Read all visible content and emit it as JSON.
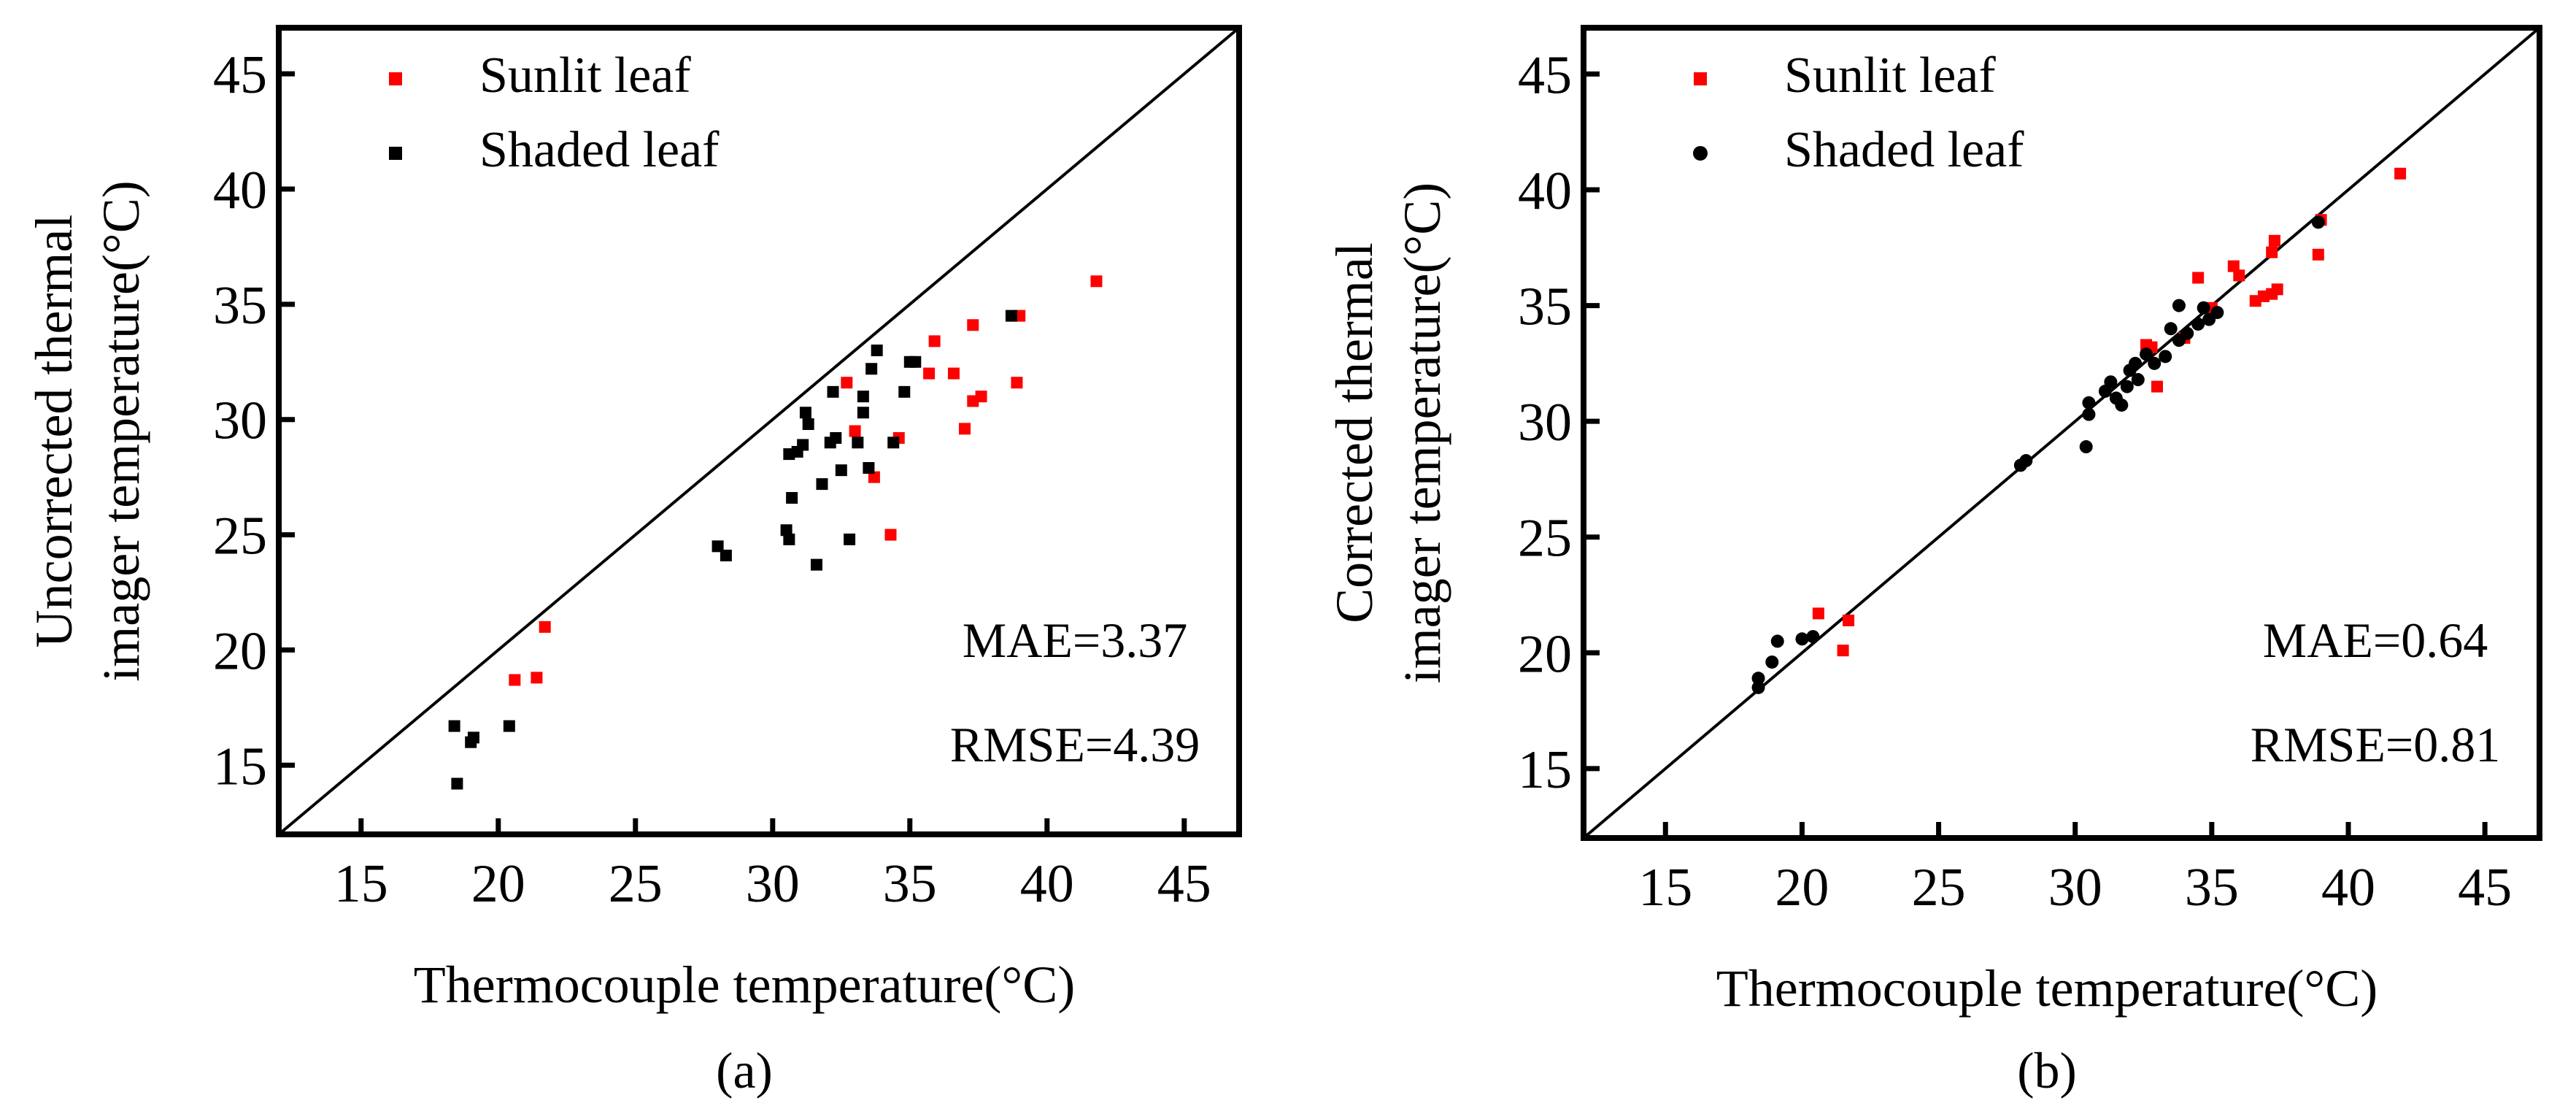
{
  "chart_data": [
    {
      "type": "scatter",
      "panel_label": "(a)",
      "xlabel": "Thermocouple temperature(°C)",
      "ylabel_lines": [
        "Uncorrected thermal",
        "imager temperature(°C)"
      ],
      "xlim": [
        12,
        47
      ],
      "ylim": [
        12,
        47
      ],
      "xticks": [
        15,
        20,
        25,
        30,
        35,
        40,
        45
      ],
      "yticks": [
        15,
        20,
        25,
        30,
        35,
        40,
        45
      ],
      "reference_line": "1:1",
      "legend_position": "top-left",
      "stats": [
        "MAE=3.37",
        "RMSE=4.39"
      ],
      "series": [
        {
          "name": "Sunlit leaf",
          "marker": "square",
          "color": "#ff0000",
          "points": [
            [
              20.6,
              18.7
            ],
            [
              21.4,
              18.8
            ],
            [
              21.7,
              21.0
            ],
            [
              32.7,
              31.6
            ],
            [
              33.0,
              29.5
            ],
            [
              33.7,
              27.5
            ],
            [
              34.3,
              25.0
            ],
            [
              34.6,
              29.2
            ],
            [
              35.7,
              32.0
            ],
            [
              35.9,
              33.4
            ],
            [
              36.6,
              32.0
            ],
            [
              37.0,
              29.6
            ],
            [
              37.3,
              34.1
            ],
            [
              37.3,
              30.8
            ],
            [
              37.6,
              31.0
            ],
            [
              38.9,
              31.6
            ],
            [
              39.0,
              34.5
            ],
            [
              41.8,
              36.0
            ]
          ]
        },
        {
          "name": "Shaded leaf",
          "marker": "square",
          "color": "#000000",
          "points": [
            [
              18.4,
              16.7
            ],
            [
              18.5,
              14.2
            ],
            [
              19.0,
              16.0
            ],
            [
              19.1,
              16.2
            ],
            [
              20.4,
              16.7
            ],
            [
              28.0,
              24.5
            ],
            [
              28.3,
              24.1
            ],
            [
              30.5,
              25.2
            ],
            [
              30.6,
              24.8
            ],
            [
              30.7,
              26.6
            ],
            [
              30.6,
              28.5
            ],
            [
              30.9,
              28.6
            ],
            [
              31.1,
              28.9
            ],
            [
              31.2,
              30.3
            ],
            [
              31.3,
              29.8
            ],
            [
              31.6,
              23.7
            ],
            [
              31.8,
              27.2
            ],
            [
              32.1,
              29.0
            ],
            [
              32.2,
              31.2
            ],
            [
              32.3,
              29.2
            ],
            [
              32.5,
              27.8
            ],
            [
              32.8,
              24.8
            ],
            [
              33.1,
              29.0
            ],
            [
              33.3,
              31.0
            ],
            [
              33.3,
              30.3
            ],
            [
              33.5,
              27.9
            ],
            [
              33.6,
              32.2
            ],
            [
              33.8,
              33.0
            ],
            [
              34.4,
              29.0
            ],
            [
              34.8,
              31.2
            ],
            [
              35.0,
              32.5
            ],
            [
              35.2,
              32.5
            ],
            [
              38.7,
              34.5
            ]
          ]
        }
      ]
    },
    {
      "type": "scatter",
      "panel_label": "(b)",
      "xlabel": "Thermocouple temperature(°C)",
      "ylabel_lines": [
        "Corrected thermal",
        "imager temperature(°C)"
      ],
      "xlim": [
        12,
        47
      ],
      "ylim": [
        12,
        47
      ],
      "xticks": [
        15,
        20,
        25,
        30,
        35,
        40,
        45
      ],
      "yticks": [
        15,
        20,
        25,
        30,
        35,
        40,
        45
      ],
      "reference_line": "1:1",
      "legend_position": "top-left",
      "stats": [
        "MAE=0.64",
        "RMSE=0.81"
      ],
      "series": [
        {
          "name": "Sunlit leaf",
          "marker": "square",
          "color": "#ff0000",
          "points": [
            [
              20.6,
              21.7
            ],
            [
              21.5,
              20.1
            ],
            [
              21.7,
              21.4
            ],
            [
              32.6,
              33.3
            ],
            [
              32.8,
              33.2
            ],
            [
              33.0,
              31.5
            ],
            [
              34.0,
              33.6
            ],
            [
              34.5,
              36.2
            ],
            [
              35.0,
              34.9
            ],
            [
              35.8,
              36.7
            ],
            [
              36.0,
              36.3
            ],
            [
              36.6,
              35.2
            ],
            [
              36.9,
              35.4
            ],
            [
              37.2,
              35.5
            ],
            [
              37.2,
              37.3
            ],
            [
              37.3,
              37.8
            ],
            [
              37.4,
              35.7
            ],
            [
              38.9,
              37.2
            ],
            [
              39.0,
              38.7
            ],
            [
              41.9,
              40.7
            ]
          ]
        },
        {
          "name": "Shaded leaf",
          "marker": "circle",
          "color": "#000000",
          "points": [
            [
              18.4,
              18.5
            ],
            [
              18.4,
              18.9
            ],
            [
              18.9,
              19.6
            ],
            [
              19.1,
              20.5
            ],
            [
              20.0,
              20.6
            ],
            [
              20.4,
              20.7
            ],
            [
              28.0,
              28.1
            ],
            [
              28.2,
              28.3
            ],
            [
              30.4,
              28.9
            ],
            [
              30.5,
              30.3
            ],
            [
              30.5,
              30.8
            ],
            [
              31.1,
              31.3
            ],
            [
              31.3,
              31.7
            ],
            [
              31.5,
              31.0
            ],
            [
              31.7,
              30.7
            ],
            [
              31.9,
              31.5
            ],
            [
              32.0,
              32.2
            ],
            [
              32.2,
              32.5
            ],
            [
              32.3,
              31.8
            ],
            [
              32.6,
              32.9
            ],
            [
              32.9,
              32.5
            ],
            [
              33.3,
              32.8
            ],
            [
              33.5,
              34.0
            ],
            [
              33.8,
              35.0
            ],
            [
              33.8,
              33.5
            ],
            [
              34.1,
              33.8
            ],
            [
              34.5,
              34.2
            ],
            [
              34.7,
              34.9
            ],
            [
              34.9,
              34.4
            ],
            [
              35.2,
              34.7
            ],
            [
              38.9,
              38.6
            ]
          ]
        }
      ]
    }
  ]
}
